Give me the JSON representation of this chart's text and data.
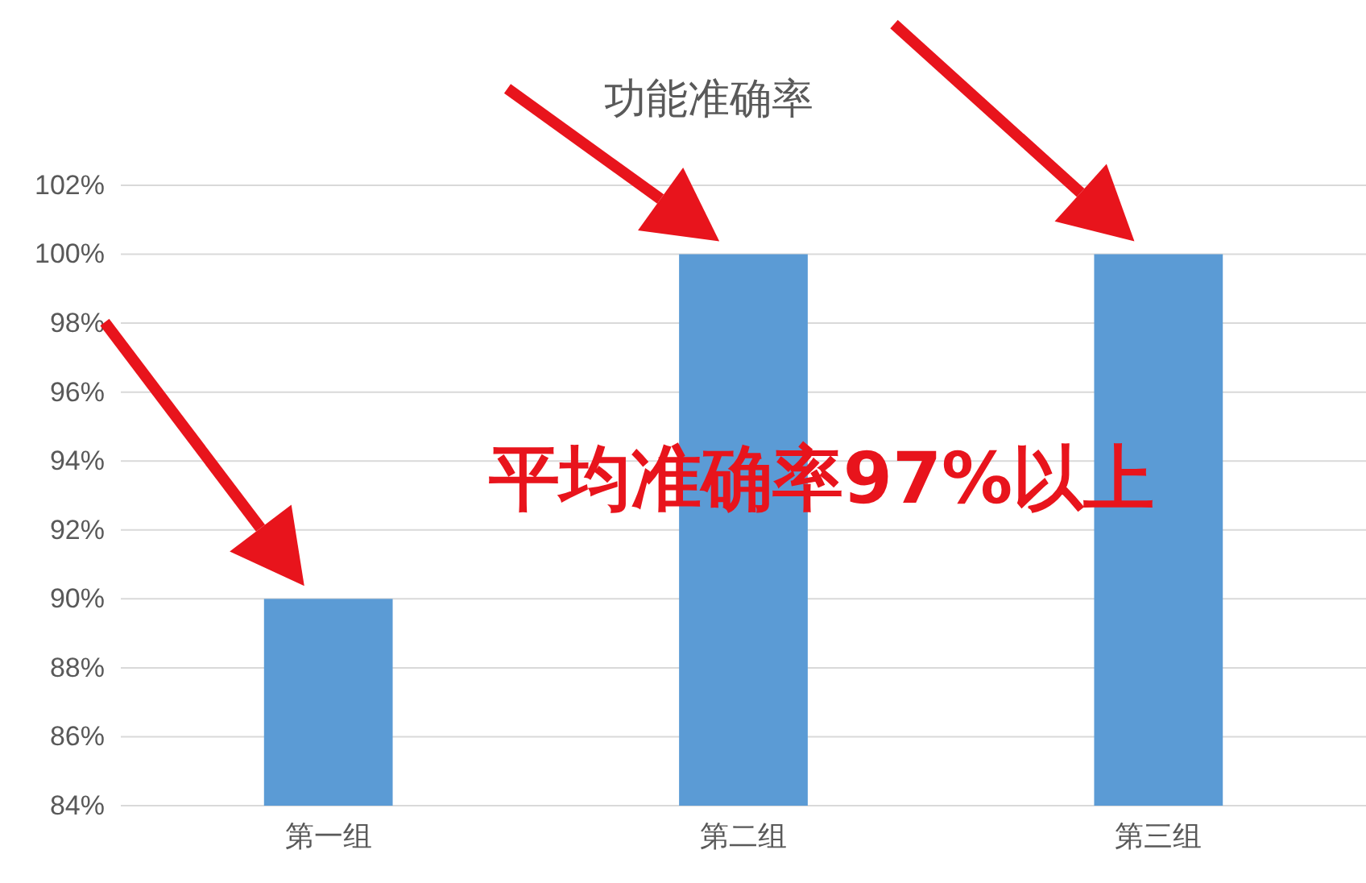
{
  "chart_data": {
    "type": "bar",
    "title": "功能准确率",
    "categories": [
      "第一组",
      "第二组",
      "第三组"
    ],
    "values": [
      90,
      100,
      100
    ],
    "color": "#5b9bd5",
    "ylim": [
      84,
      102
    ],
    "yticks": [
      {
        "value": 84,
        "label": "84%"
      },
      {
        "value": 86,
        "label": "86%"
      },
      {
        "value": 88,
        "label": "88%"
      },
      {
        "value": 90,
        "label": "90%"
      },
      {
        "value": 92,
        "label": "92%"
      },
      {
        "value": 94,
        "label": "94%"
      },
      {
        "value": 96,
        "label": "96%"
      },
      {
        "value": 98,
        "label": "98%"
      },
      {
        "value": 100,
        "label": "100%"
      },
      {
        "value": 102,
        "label": "102%"
      }
    ],
    "grid": "y",
    "annotations": [
      "平均准确率97%以上"
    ]
  }
}
